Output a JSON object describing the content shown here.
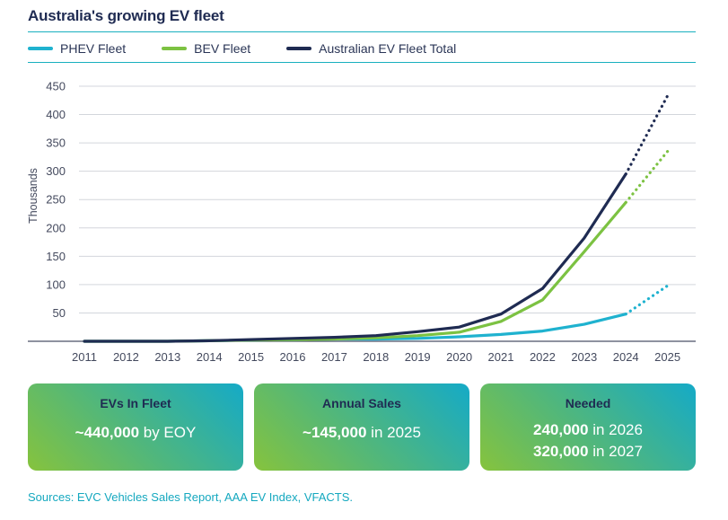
{
  "title": "Australia's growing EV fleet",
  "legend": [
    {
      "label": "PHEV Fleet",
      "color": "#1fb2cf"
    },
    {
      "label": "BEV Fleet",
      "color": "#7cc242"
    },
    {
      "label": "Australian EV Fleet Total",
      "color": "#1f2b52"
    }
  ],
  "chart_data": {
    "type": "line",
    "title": "Australia's growing EV fleet",
    "xlabel": "",
    "ylabel": "Thousands",
    "ylim": [
      0,
      450
    ],
    "yticks": [
      50,
      100,
      150,
      200,
      250,
      300,
      350,
      400,
      450
    ],
    "grid": true,
    "legend_position": "top",
    "x": [
      "2011",
      "2012",
      "2013",
      "2014",
      "2015",
      "2016",
      "2017",
      "2018",
      "2019",
      "2020",
      "2021",
      "2022",
      "2023",
      "2024",
      "2025"
    ],
    "projected_from": "2024",
    "series": [
      {
        "name": "PHEV Fleet",
        "color": "#1fb2cf",
        "values": [
          0,
          0,
          0,
          1,
          2,
          3,
          4,
          4,
          5,
          8,
          12,
          18,
          30,
          48,
          98
        ]
      },
      {
        "name": "BEV Fleet",
        "color": "#7cc242",
        "values": [
          0,
          0,
          0,
          1,
          2,
          3,
          4,
          6,
          10,
          16,
          35,
          73,
          158,
          245,
          335
        ]
      },
      {
        "name": "Australian EV Fleet Total",
        "color": "#1f2b52",
        "values": [
          0,
          0,
          0,
          1,
          3,
          5,
          7,
          10,
          17,
          25,
          48,
          93,
          182,
          295,
          433
        ]
      }
    ]
  },
  "cards": [
    {
      "title": "EVs In Fleet",
      "lines": [
        {
          "bold": "~440,000",
          "rest": " by EOY"
        }
      ]
    },
    {
      "title": "Annual Sales",
      "lines": [
        {
          "bold": "~145,000",
          "rest": " in 2025"
        }
      ]
    },
    {
      "title": "Needed",
      "lines": [
        {
          "bold": "240,000",
          "rest": " in 2026"
        },
        {
          "bold": "320,000",
          "rest": " in 2027"
        }
      ]
    }
  ],
  "source": "Sources: EVC Vehicles Sales Report, AAA EV Index, VFACTS."
}
